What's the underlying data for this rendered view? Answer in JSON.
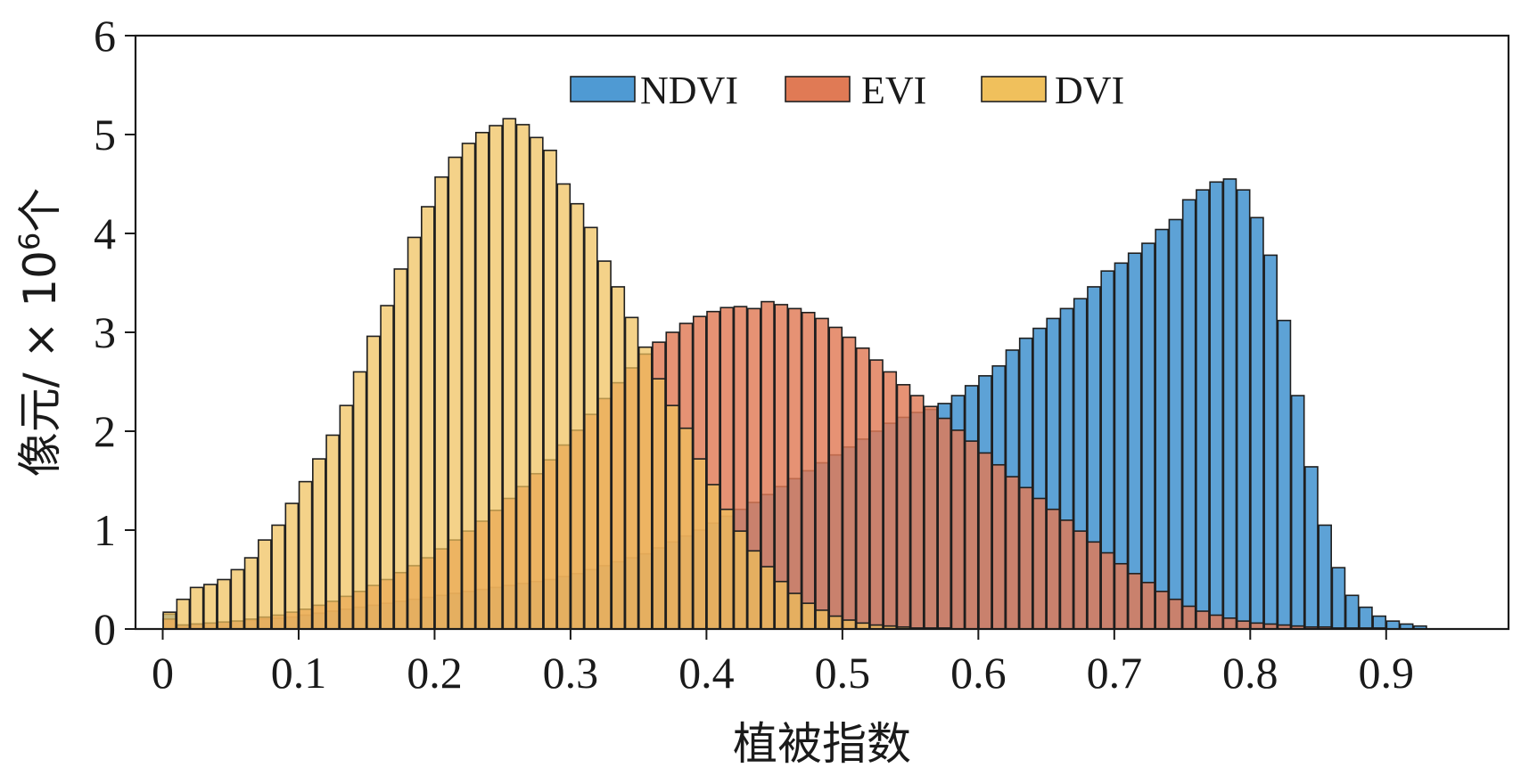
{
  "chart_data": {
    "type": "bar",
    "mode": "overlapping-histogram",
    "xlabel": "植被指数",
    "ylabel_main": "像元/ × 10",
    "ylabel_exp": "6",
    "ylabel_tail": "个",
    "xlim": [
      -0.02,
      0.99
    ],
    "ylim": [
      0,
      6
    ],
    "bin_width": 0.01,
    "x_ticks": [
      0,
      0.1,
      0.2,
      0.3,
      0.4,
      0.5,
      0.6,
      0.7,
      0.8,
      0.9
    ],
    "x_tick_labels": [
      "0",
      "0.1",
      "0.2",
      "0.3",
      "0.4",
      "0.5",
      "0.6",
      "0.7",
      "0.8",
      "0.9"
    ],
    "y_ticks": [
      0,
      1,
      2,
      3,
      4,
      5,
      6
    ],
    "y_tick_labels": [
      "0",
      "1",
      "2",
      "3",
      "4",
      "5",
      "6"
    ],
    "legend_position": "top-center",
    "series": [
      {
        "name": "NDVI",
        "color": "#4f9ad3",
        "values": [
          0.15,
          0.04,
          0.05,
          0.06,
          0.07,
          0.08,
          0.09,
          0.1,
          0.11,
          0.12,
          0.14,
          0.16,
          0.18,
          0.2,
          0.22,
          0.24,
          0.26,
          0.28,
          0.3,
          0.32,
          0.34,
          0.36,
          0.38,
          0.4,
          0.42,
          0.44,
          0.46,
          0.48,
          0.5,
          0.53,
          0.56,
          0.6,
          0.64,
          0.68,
          0.72,
          0.76,
          0.82,
          0.88,
          0.94,
          1.0,
          1.07,
          1.14,
          1.21,
          1.28,
          1.36,
          1.44,
          1.52,
          1.6,
          1.68,
          1.76,
          1.84,
          1.92,
          2.0,
          2.08,
          2.14,
          2.19,
          2.22,
          2.28,
          2.36,
          2.46,
          2.56,
          2.66,
          2.82,
          2.94,
          3.04,
          3.14,
          3.24,
          3.34,
          3.46,
          3.62,
          3.7,
          3.8,
          3.9,
          4.04,
          4.14,
          4.34,
          4.44,
          4.52,
          4.55,
          4.44,
          4.16,
          3.78,
          3.12,
          2.36,
          1.64,
          1.05,
          0.62,
          0.34,
          0.22,
          0.13,
          0.08,
          0.05,
          0.03
        ]
      },
      {
        "name": "EVI",
        "color": "#e07a55",
        "values": [
          0.1,
          0.04,
          0.05,
          0.06,
          0.07,
          0.08,
          0.1,
          0.12,
          0.14,
          0.17,
          0.2,
          0.24,
          0.28,
          0.33,
          0.38,
          0.44,
          0.5,
          0.57,
          0.64,
          0.72,
          0.81,
          0.9,
          0.99,
          1.09,
          1.2,
          1.32,
          1.44,
          1.57,
          1.71,
          1.86,
          2.01,
          2.17,
          2.33,
          2.49,
          2.64,
          2.78,
          2.9,
          3.0,
          3.09,
          3.16,
          3.21,
          3.25,
          3.26,
          3.24,
          3.31,
          3.28,
          3.24,
          3.2,
          3.14,
          3.05,
          2.95,
          2.84,
          2.72,
          2.6,
          2.47,
          2.36,
          2.25,
          2.13,
          2.01,
          1.9,
          1.78,
          1.66,
          1.54,
          1.43,
          1.32,
          1.21,
          1.1,
          0.99,
          0.88,
          0.77,
          0.66,
          0.56,
          0.47,
          0.38,
          0.3,
          0.23,
          0.18,
          0.14,
          0.11,
          0.08,
          0.06,
          0.05,
          0.04,
          0.03,
          0.02,
          0.02,
          0.01,
          0.01,
          0.01,
          0.01,
          0.0,
          0.0,
          0.0
        ]
      },
      {
        "name": "DVI",
        "color": "#f0c05c",
        "values": [
          0.17,
          0.3,
          0.42,
          0.45,
          0.5,
          0.6,
          0.72,
          0.9,
          1.05,
          1.27,
          1.49,
          1.72,
          1.96,
          2.26,
          2.6,
          2.96,
          3.27,
          3.64,
          3.96,
          4.27,
          4.57,
          4.77,
          4.91,
          5.02,
          5.09,
          5.16,
          5.1,
          4.97,
          4.84,
          4.5,
          4.3,
          4.06,
          3.72,
          3.46,
          3.15,
          2.85,
          2.53,
          2.26,
          2.03,
          1.72,
          1.46,
          1.21,
          0.99,
          0.79,
          0.63,
          0.48,
          0.36,
          0.26,
          0.19,
          0.13,
          0.09,
          0.06,
          0.04,
          0.03,
          0.02,
          0.01,
          0.01,
          0.01,
          0.0,
          0.0,
          0.0,
          0.0,
          0.0,
          0.0,
          0.0,
          0.0,
          0.0,
          0.0,
          0.0,
          0.0,
          0.0,
          0.0,
          0.0,
          0.0,
          0.0,
          0.0,
          0.0,
          0.0,
          0.0,
          0.0,
          0.0,
          0.0,
          0.0,
          0.0,
          0.0,
          0.0,
          0.0,
          0.0,
          0.0,
          0.0,
          0.0,
          0.0,
          0.0
        ]
      }
    ]
  }
}
